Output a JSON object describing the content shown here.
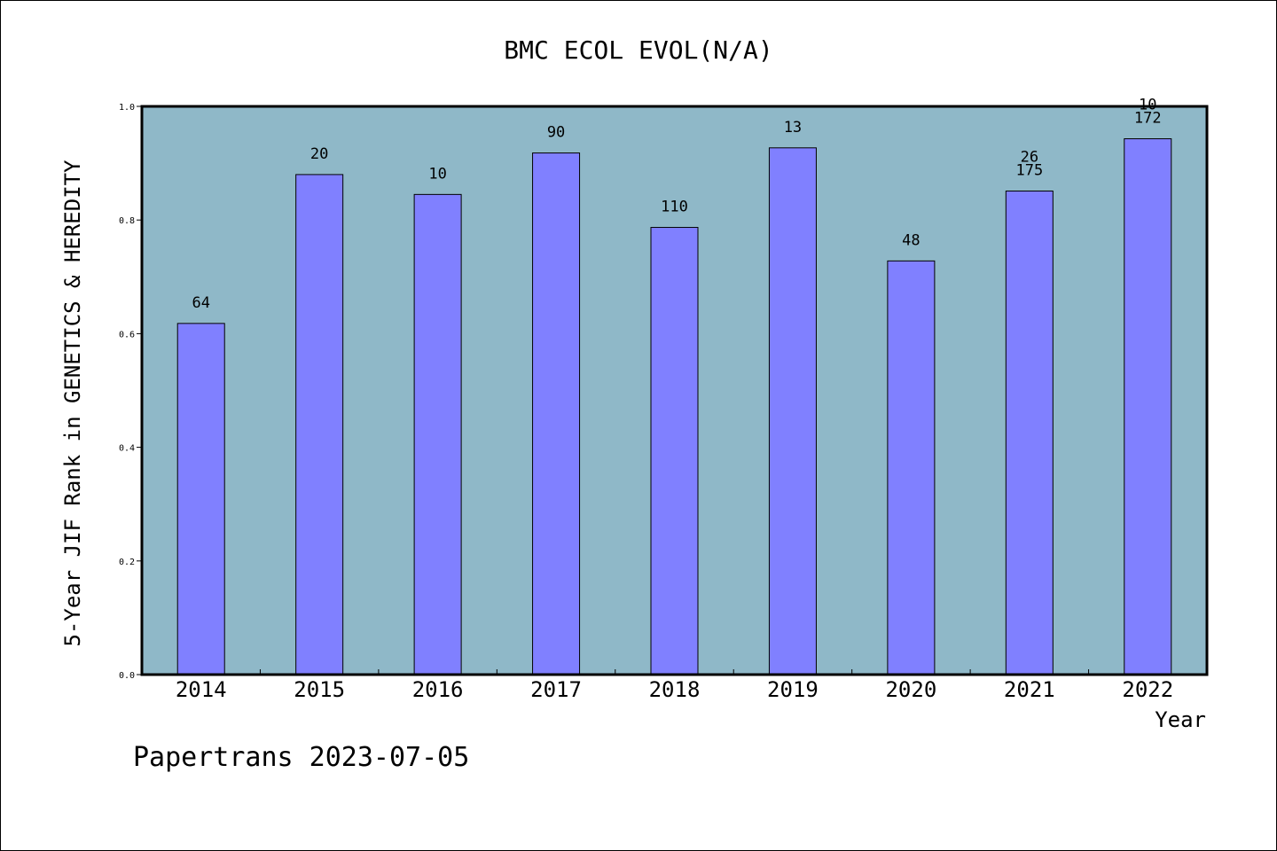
{
  "chart_data": {
    "type": "bar",
    "title": "BMC ECOL EVOL(N/A)",
    "xlabel": "Year",
    "ylabel": "5-Year JIF Rank in GENETICS & HEREDITY",
    "ylim": [
      0,
      1.0
    ],
    "yticks": [
      "0.0",
      "0.2",
      "0.4",
      "0.6",
      "0.8",
      "1.0"
    ],
    "grid": false,
    "categories": [
      "2014",
      "2015",
      "2016",
      "2017",
      "2018",
      "2019",
      "2020",
      "2021",
      "2022"
    ],
    "values": [
      0.618,
      0.88,
      0.845,
      0.918,
      0.787,
      0.927,
      0.728,
      0.851,
      0.943
    ],
    "bar_labels": [
      [
        "64"
      ],
      [
        "20"
      ],
      [
        "10"
      ],
      [
        "90"
      ],
      [
        "110"
      ],
      [
        "13"
      ],
      [
        "48"
      ],
      [
        "26",
        "175"
      ],
      [
        "10",
        "172"
      ]
    ],
    "colors": {
      "plot_background": "#8fb8c8",
      "bar_fill": "#8080ff",
      "bar_stroke": "#000000"
    }
  },
  "footer": {
    "credit": "Papertrans 2023-07-05"
  }
}
